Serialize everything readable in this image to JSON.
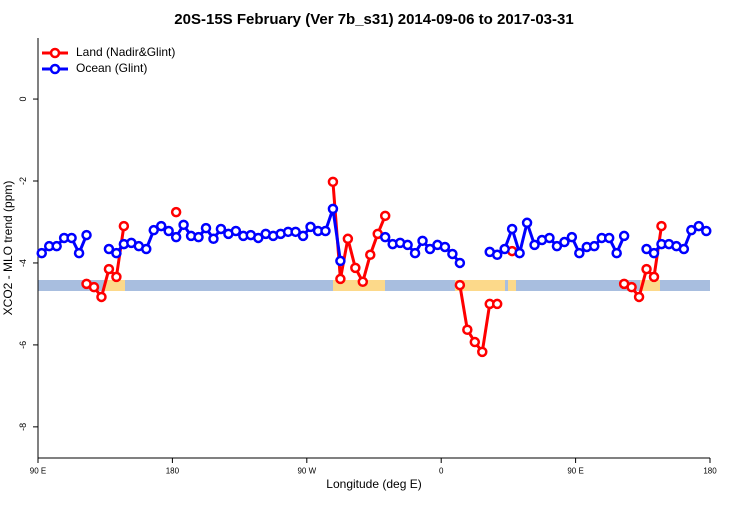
{
  "chart_data": {
    "type": "line",
    "title": "20S-15S February (Ver 7b_s31)   2014-09-06 to 2017-03-31",
    "x_label": "Longitude (deg E)",
    "y_label": "XCO2 - MLO trend (ppm)",
    "x": [
      92.5,
      97.5,
      102.5,
      107.5,
      112.5,
      117.5,
      122.5,
      127.5,
      132.5,
      137.5,
      142.5,
      147.5,
      152.5,
      157.5,
      162.5,
      167.5,
      172.5,
      177.5,
      182.5,
      187.5,
      192.5,
      197.5,
      202.5,
      207.5,
      212.5,
      217.5,
      222.5,
      227.5,
      232.5,
      237.5,
      242.5,
      247.5,
      252.5,
      257.5,
      262.5,
      267.5,
      272.5,
      277.5,
      282.5,
      287.5,
      292.5,
      297.5,
      302.5,
      307.5,
      312.5,
      317.5,
      322.5,
      327.5,
      332.5,
      337.5,
      342.5,
      347.5,
      352.5,
      357.5,
      362.5,
      367.5,
      372.5,
      377.5,
      382.5,
      387.5,
      392.5,
      397.5,
      402.5,
      407.5,
      412.5,
      417.5,
      422.5,
      427.5,
      432.5,
      437.5,
      442.5,
      447.5,
      452.5,
      457.5,
      462.5,
      467.5,
      472.5,
      477.5,
      482.5,
      487.5,
      492.5,
      497.5,
      502.5,
      507.5,
      512.5,
      517.5,
      522.5,
      527.5,
      532.5,
      537.5
    ],
    "series": [
      {
        "name": "Land (Nadir&Glint)",
        "color": "#ff0000",
        "values": [
          null,
          null,
          null,
          null,
          null,
          null,
          -4.51,
          -4.59,
          -4.83,
          -4.15,
          -4.34,
          -3.1,
          null,
          null,
          null,
          null,
          null,
          null,
          -2.76,
          null,
          null,
          null,
          null,
          null,
          null,
          null,
          null,
          null,
          null,
          null,
          null,
          null,
          null,
          null,
          null,
          null,
          null,
          null,
          null,
          -2.02,
          -4.39,
          -3.41,
          -4.12,
          -4.46,
          -3.8,
          -3.29,
          -2.85,
          null,
          null,
          null,
          null,
          null,
          null,
          null,
          null,
          null,
          -4.54,
          -5.63,
          -5.93,
          -6.17,
          -5.0,
          -5.0,
          null,
          -3.71,
          null,
          null,
          null,
          null,
          null,
          null,
          null,
          null,
          null,
          null,
          null,
          null,
          null,
          null,
          -4.51,
          -4.59,
          -4.83,
          -4.15,
          -4.34,
          -3.1,
          null,
          null,
          null,
          null,
          null,
          null
        ]
      },
      {
        "name": "Ocean (Glint)",
        "color": "#0000ff",
        "values": [
          -3.76,
          -3.59,
          -3.59,
          -3.39,
          -3.39,
          -3.76,
          -3.32,
          null,
          null,
          -3.66,
          -3.76,
          -3.54,
          -3.51,
          -3.59,
          -3.66,
          -3.2,
          -3.1,
          -3.22,
          -3.37,
          -3.07,
          -3.34,
          -3.37,
          -3.15,
          -3.41,
          -3.17,
          -3.29,
          -3.22,
          -3.34,
          -3.32,
          -3.39,
          -3.29,
          -3.34,
          -3.29,
          -3.24,
          -3.24,
          -3.34,
          -3.12,
          -3.22,
          -3.22,
          -2.68,
          -3.95,
          null,
          null,
          null,
          null,
          null,
          -3.37,
          -3.54,
          -3.51,
          -3.56,
          -3.76,
          -3.46,
          -3.66,
          -3.56,
          -3.61,
          -3.78,
          -4.0,
          null,
          null,
          null,
          -3.73,
          -3.8,
          -3.66,
          -3.17,
          -3.76,
          -3.02,
          -3.56,
          -3.44,
          -3.39,
          -3.59,
          -3.49,
          -3.37,
          -3.76,
          -3.61,
          -3.59,
          -3.39,
          -3.39,
          -3.76,
          -3.34,
          null,
          null,
          -3.66,
          -3.76,
          -3.54,
          -3.54,
          -3.59,
          -3.66,
          -3.2,
          -3.1,
          -3.22
        ]
      }
    ],
    "xlim": [
      90,
      540
    ],
    "xticks": [
      {
        "value": 90,
        "label": "90 E"
      },
      180,
      {
        "value": 270,
        "label": "90 W"
      },
      {
        "value": 360,
        "label": "0"
      },
      {
        "value": 450,
        "label": "90 E"
      },
      {
        "value": 540,
        "label": "180"
      }
    ],
    "ylim": [
      -8.76,
      1.49
    ],
    "yticks": [
      0,
      -2,
      -4,
      -6,
      -8
    ],
    "legend": "top-left"
  }
}
